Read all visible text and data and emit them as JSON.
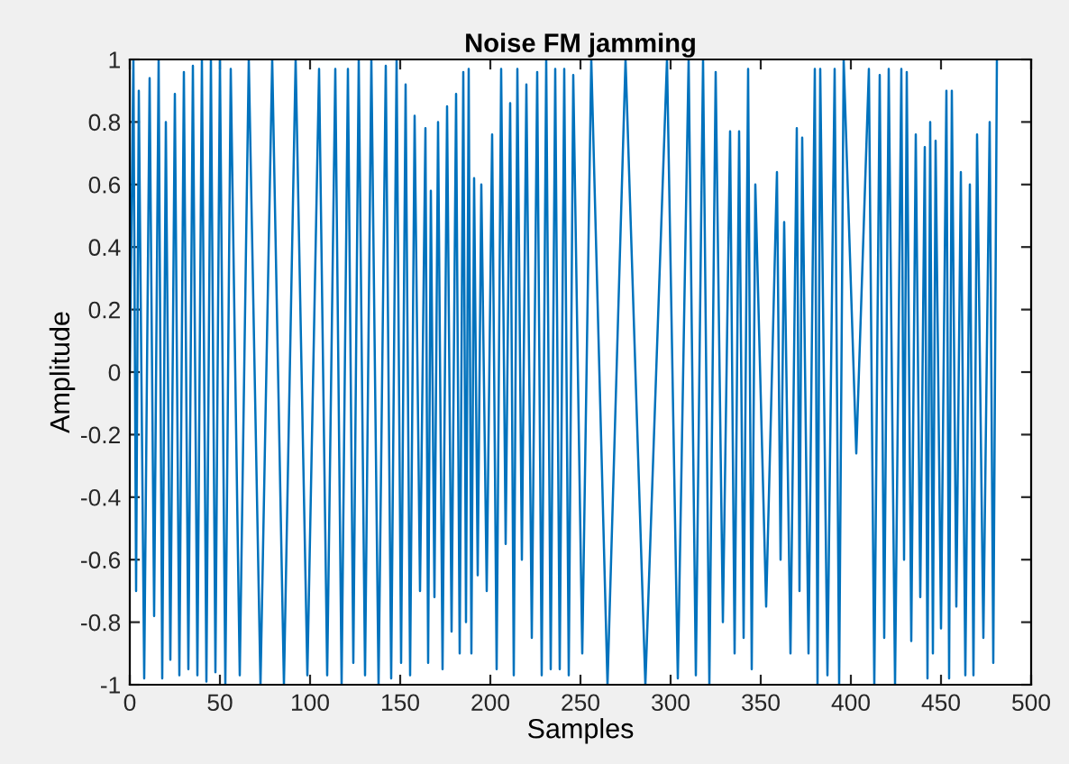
{
  "chart_data": {
    "type": "line",
    "title": "Noise FM jamming",
    "xlabel": "Samples",
    "ylabel": "Amplitude",
    "xlim": [
      0,
      500
    ],
    "xticks": [
      0,
      50,
      100,
      150,
      200,
      250,
      300,
      350,
      400,
      450,
      500
    ],
    "ylim": [
      -1,
      1
    ],
    "yticks": [
      -1,
      -0.8,
      -0.6,
      -0.4,
      -0.2,
      0,
      0.2,
      0.4,
      0.6,
      0.8,
      1
    ],
    "grid": false,
    "legend": false,
    "series": [
      {
        "color": "#0072bd",
        "x": [
          0,
          2,
          3.5,
          5,
          8,
          11,
          13.5,
          16,
          18,
          20,
          22.5,
          25,
          27.5,
          30,
          32.5,
          35,
          37.5,
          40,
          42.5,
          45,
          47.5,
          50,
          53,
          56,
          61,
          66,
          72.5,
          79,
          85.5,
          92,
          98.5,
          105,
          109.5,
          114,
          117.5,
          121,
          124,
          127,
          130.5,
          134,
          138,
          142,
          145,
          148,
          150.5,
          153,
          155.5,
          158,
          161,
          164,
          165.5,
          167,
          169,
          171,
          173.5,
          176,
          178.5,
          181,
          183,
          185,
          186.5,
          188,
          189.5,
          191,
          193,
          195,
          198,
          201,
          203.5,
          206,
          208.5,
          211,
          213,
          215,
          217.5,
          220,
          223,
          226,
          228.5,
          231,
          233.5,
          236,
          238.5,
          241,
          243.5,
          246,
          251,
          256,
          265,
          275,
          286,
          298,
          304,
          310,
          314,
          318,
          321.5,
          325,
          329,
          333,
          335.5,
          338,
          340.5,
          343,
          345,
          347,
          353,
          359,
          361,
          363,
          366.5,
          370,
          371.5,
          373,
          376.5,
          380,
          381.5,
          383,
          387,
          391,
          393.5,
          396,
          403,
          410,
          413,
          416,
          418.5,
          421,
          424.5,
          428,
          429.5,
          431,
          433.5,
          436,
          438.5,
          441,
          442.5,
          444,
          445.5,
          447,
          450,
          453,
          454.5,
          456,
          458.5,
          461,
          463.5,
          466,
          468,
          470,
          473.5,
          477,
          479,
          481
        ],
        "values": [
          0,
          1,
          -0.7,
          0.9,
          -0.98,
          0.94,
          -0.78,
          1,
          -0.98,
          0.8,
          -0.92,
          0.89,
          -0.97,
          0.96,
          -0.95,
          0.98,
          -0.97,
          1,
          -0.99,
          1,
          -0.96,
          1,
          -1,
          0.97,
          -0.97,
          1,
          -1,
          1,
          -1,
          1,
          -0.97,
          0.97,
          -0.97,
          0.97,
          -1,
          0.97,
          -0.93,
          1,
          -0.97,
          1,
          -1,
          0.98,
          -0.98,
          1,
          -0.93,
          0.92,
          -0.97,
          0.82,
          -0.7,
          0.78,
          -0.93,
          0.58,
          -0.72,
          0.8,
          -0.95,
          0.85,
          -0.83,
          0.89,
          -0.9,
          0.96,
          -0.8,
          0.97,
          -0.9,
          0.62,
          -0.65,
          0.6,
          -0.7,
          0.76,
          -0.95,
          0.97,
          -0.55,
          0.86,
          -0.97,
          0.97,
          -0.6,
          0.92,
          -0.85,
          0.96,
          -0.97,
          1,
          -0.95,
          0.97,
          -0.95,
          0.97,
          -0.97,
          0.95,
          -0.9,
          1,
          -1,
          1,
          -1,
          1,
          -0.98,
          1,
          -0.97,
          1,
          -1,
          0.96,
          -0.8,
          0.77,
          -0.9,
          0.77,
          -0.85,
          0.97,
          -0.95,
          0.6,
          -0.75,
          0.64,
          -0.6,
          0.48,
          -0.9,
          0.78,
          -0.7,
          0.75,
          -0.9,
          0.97,
          -1,
          0.97,
          -0.97,
          0.97,
          -1,
          1,
          -0.26,
          0.97,
          -1,
          0.95,
          -0.85,
          0.97,
          -1,
          0.97,
          -0.6,
          0.96,
          -0.86,
          0.76,
          -0.72,
          0.72,
          -0.98,
          0.8,
          -0.9,
          0.74,
          -0.82,
          0.9,
          -0.98,
          0.9,
          -0.75,
          0.64,
          -0.97,
          0.6,
          -0.97,
          0.76,
          -0.85,
          0.8,
          -0.93,
          1
        ]
      }
    ]
  }
}
